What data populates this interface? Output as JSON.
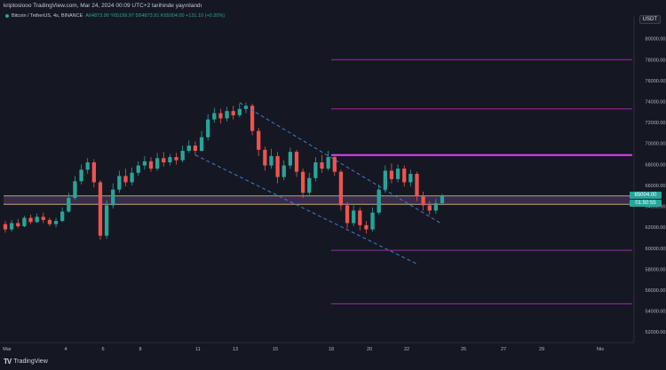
{
  "header": {
    "publisher_line": "kriptoslooo TradingView.com, Mar 24, 2024 00:09 UTC+2 tarihinde yayınlandı",
    "symbol": "Bitcoin / TetherUS, 4s, BINANCE",
    "ohlc": "A64873.90 Y65199.97 D64873.91 K65004.00 +131.10 (+0.20%)",
    "currency": "USDT"
  },
  "logo": {
    "mark": "TV",
    "text": "TradingView"
  },
  "price_axis": {
    "ticks": [
      "80000.00",
      "78000.00",
      "76000.00",
      "74000.00",
      "72000.00",
      "70000.00",
      "68000.00",
      "66000.00",
      "64000.00",
      "62000.00",
      "60000.00",
      "58000.00",
      "56000.00",
      "54000.00",
      "52000.00"
    ],
    "current_price": "65004.00",
    "countdown": "01:50:55"
  },
  "time_axis": {
    "ticks": [
      "Mar",
      "4",
      "6",
      "8",
      "11",
      "13",
      "15",
      "18",
      "20",
      "22",
      "25",
      "27",
      "29",
      "Nis"
    ]
  },
  "colors": {
    "background": "#151822",
    "up": "#26a69a",
    "down": "#ef5350",
    "resistance": "#9c27b0",
    "strong_resistance": "#e040fb",
    "zone_line": "#c9a36b",
    "channel": "#3f7bd9",
    "price_tag": "#26a69a"
  },
  "chart_data": {
    "type": "candlestick",
    "ylim": [
      51000,
      81500
    ],
    "horizontal_levels": [
      78000,
      73300,
      68900,
      59800,
      54700
    ],
    "zone": [
      64200,
      65000
    ],
    "candles": [
      [
        62300,
        61800,
        62600,
        61500
      ],
      [
        61800,
        62400,
        62700,
        61600
      ],
      [
        62400,
        62100,
        62800,
        61900
      ],
      [
        62100,
        62900,
        63100,
        62000
      ],
      [
        62900,
        62500,
        63200,
        62300
      ],
      [
        62500,
        63000,
        63300,
        62400
      ],
      [
        63000,
        62700,
        63400,
        62400
      ],
      [
        62700,
        62300,
        62900,
        62100
      ],
      [
        62300,
        62600,
        62900,
        62000
      ],
      [
        62600,
        63500,
        63900,
        62500
      ],
      [
        63500,
        64800,
        65300,
        63400
      ],
      [
        64800,
        66400,
        66900,
        64600
      ],
      [
        66400,
        67500,
        68000,
        66100
      ],
      [
        67500,
        68200,
        68600,
        67100
      ],
      [
        68200,
        66300,
        68500,
        65800
      ],
      [
        66300,
        61200,
        66500,
        60800
      ],
      [
        61200,
        64100,
        64600,
        60900
      ],
      [
        64100,
        65600,
        66200,
        63800
      ],
      [
        65600,
        66900,
        67400,
        65300
      ],
      [
        66900,
        66300,
        67600,
        65900
      ],
      [
        66300,
        67200,
        67700,
        66000
      ],
      [
        67200,
        67900,
        68300,
        66900
      ],
      [
        67900,
        68300,
        68800,
        67500
      ],
      [
        68300,
        67600,
        68700,
        67300
      ],
      [
        67600,
        68600,
        69100,
        67400
      ],
      [
        68600,
        68200,
        69200,
        67800
      ],
      [
        68200,
        68700,
        69000,
        67900
      ],
      [
        68700,
        68400,
        69100,
        68000
      ],
      [
        68400,
        69300,
        69800,
        68200
      ],
      [
        69300,
        69800,
        70300,
        69100
      ],
      [
        69800,
        69300,
        70200,
        68900
      ],
      [
        69300,
        70600,
        71200,
        69200
      ],
      [
        70600,
        72300,
        72800,
        70300
      ],
      [
        72300,
        72900,
        73400,
        72000
      ],
      [
        72900,
        72400,
        73300,
        71900
      ],
      [
        72400,
        73100,
        73500,
        72100
      ],
      [
        73100,
        72700,
        73600,
        72300
      ],
      [
        72700,
        73300,
        73800,
        72500
      ],
      [
        73300,
        73600,
        73900,
        72900
      ],
      [
        73600,
        71200,
        73800,
        70800
      ],
      [
        71200,
        69400,
        71500,
        68800
      ],
      [
        69400,
        67900,
        69700,
        67400
      ],
      [
        67900,
        68800,
        69500,
        67600
      ],
      [
        68800,
        66800,
        69200,
        66200
      ],
      [
        66800,
        67900,
        68400,
        66500
      ],
      [
        67900,
        69200,
        69600,
        67600
      ],
      [
        69200,
        67300,
        69400,
        66800
      ],
      [
        67300,
        65300,
        67600,
        64800
      ],
      [
        65300,
        66700,
        67200,
        65000
      ],
      [
        66700,
        68200,
        68700,
        66400
      ],
      [
        68200,
        67600,
        68900,
        67200
      ],
      [
        67600,
        68700,
        69300,
        67400
      ],
      [
        68700,
        67300,
        68900,
        66900
      ],
      [
        67300,
        64100,
        67500,
        63600
      ],
      [
        64100,
        62400,
        64400,
        61900
      ],
      [
        62400,
        63600,
        64100,
        62100
      ],
      [
        63600,
        62200,
        63900,
        61700
      ],
      [
        62200,
        61800,
        62600,
        61400
      ],
      [
        61800,
        63400,
        63900,
        61600
      ],
      [
        63400,
        65600,
        66100,
        63200
      ],
      [
        65600,
        67400,
        67900,
        65300
      ],
      [
        67400,
        66600,
        68100,
        66200
      ],
      [
        66600,
        67600,
        68000,
        66300
      ],
      [
        67600,
        66300,
        67900,
        65900
      ],
      [
        66300,
        67100,
        67500,
        65900
      ],
      [
        67100,
        65000,
        67300,
        64500
      ],
      [
        65000,
        64100,
        65400,
        63600
      ],
      [
        64100,
        63600,
        64500,
        63200
      ],
      [
        63600,
        64300,
        64700,
        63300
      ],
      [
        64300,
        65000,
        65200,
        64100
      ]
    ]
  }
}
